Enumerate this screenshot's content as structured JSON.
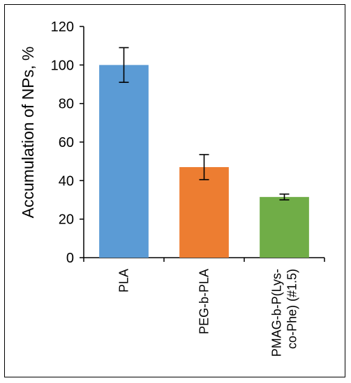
{
  "chart_data": {
    "type": "bar",
    "title": "",
    "xlabel": "",
    "ylabel": "Accumulation of NPs, %",
    "ylim": [
      0,
      120
    ],
    "yticks": [
      0,
      20,
      40,
      60,
      80,
      100,
      120
    ],
    "categories": [
      [
        "PLA"
      ],
      [
        "PEG-b-PLA"
      ],
      [
        "PMAG-b-P(Lys-",
        "co-Phe) (#1.5)"
      ]
    ],
    "values": [
      100,
      47,
      31.5
    ],
    "errors": [
      9,
      6.5,
      1.5
    ],
    "colors": [
      "#5b9bd5",
      "#ed7d31",
      "#70ad47"
    ],
    "grid": false,
    "legend": "none"
  }
}
